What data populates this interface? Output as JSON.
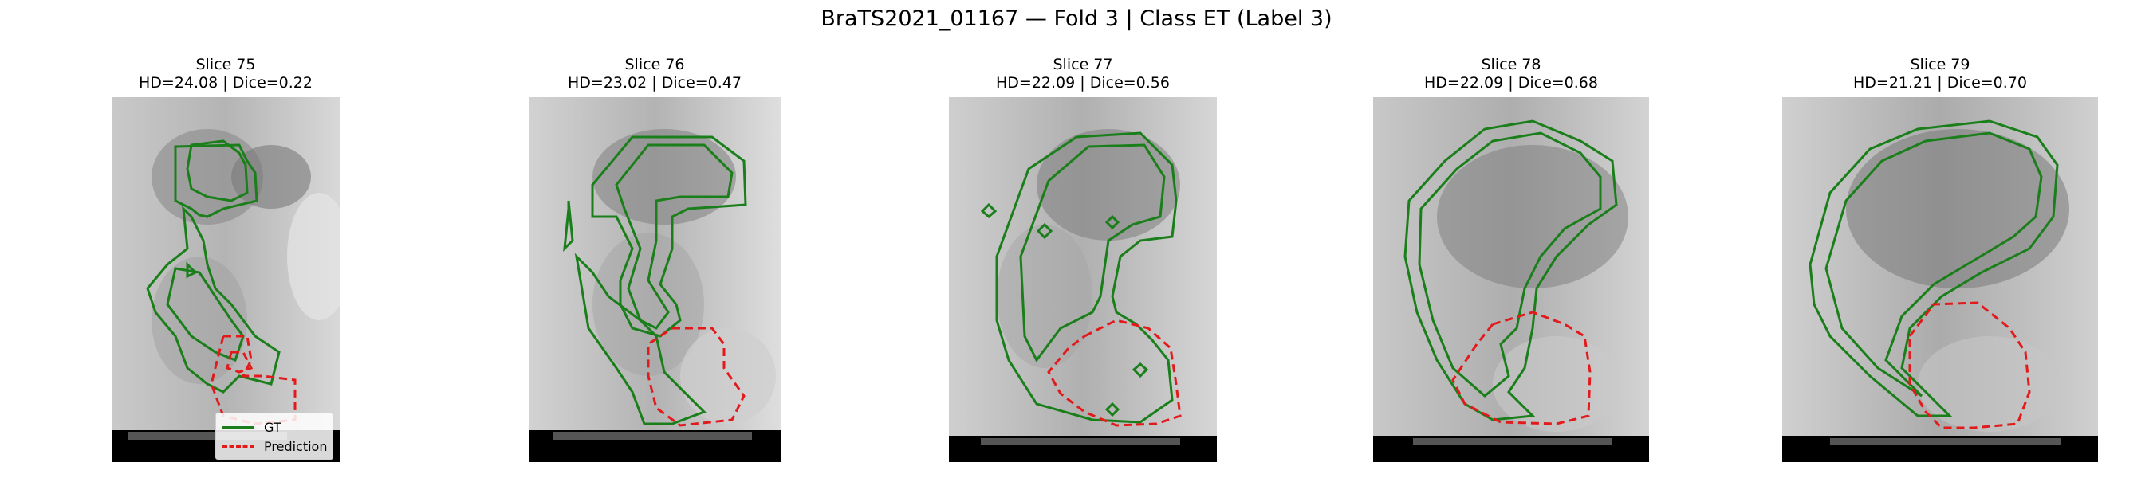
{
  "figure": {
    "title": "BraTS2021_01167 — Fold 3 | Class ET (Label 3)"
  },
  "panels": [
    {
      "slice": "Slice 75",
      "metrics": "HD=24.08 | Dice=0.22"
    },
    {
      "slice": "Slice 76",
      "metrics": "HD=23.02 | Dice=0.47"
    },
    {
      "slice": "Slice 77",
      "metrics": "HD=22.09 | Dice=0.56"
    },
    {
      "slice": "Slice 78",
      "metrics": "HD=22.09 | Dice=0.68"
    },
    {
      "slice": "Slice 79",
      "metrics": "HD=21.21 | Dice=0.70"
    }
  ],
  "legend": {
    "gt_label": "GT",
    "prediction_label": "Prediction",
    "gt_color": "#1a7f1a",
    "prediction_color": "#e31a1c"
  }
}
